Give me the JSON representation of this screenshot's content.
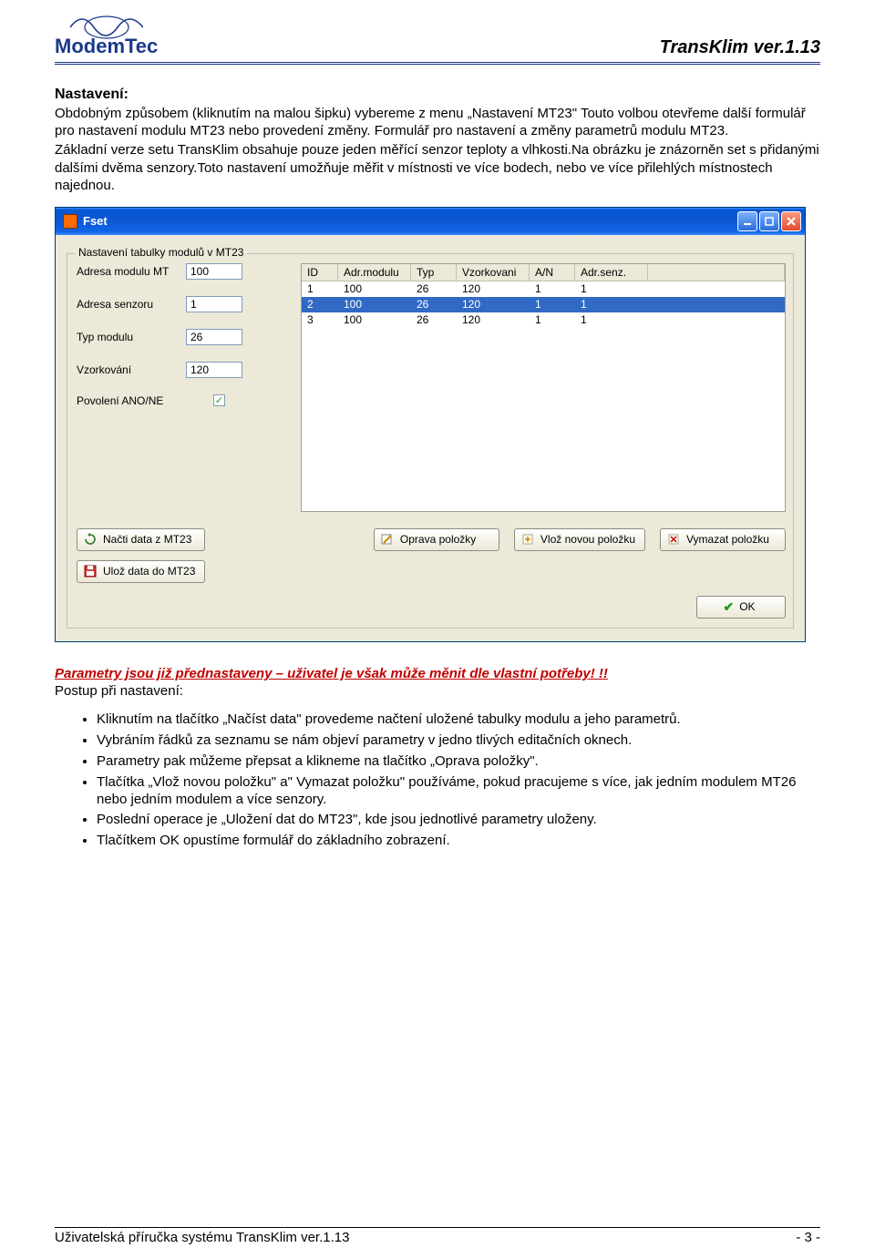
{
  "header": {
    "logo_text": "ModemTec",
    "doc_title": "TransKlim  ver.1.13",
    "logo_color": "#1a3a8a"
  },
  "text": {
    "section_title": "Nastavení:",
    "para1": "Obdobným způsobem (kliknutím na malou šipku) vybereme z menu „Nastavení MT23\" Touto volbou otevřeme další formulář pro nastavení modulu MT23 nebo provedení změny. Formulář pro nastavení a změny parametrů modulu MT23.",
    "para2": "Základní verze setu TransKlim obsahuje pouze jeden měřící senzor teploty a vlhkosti.Na obrázku je znázorněn set s přidanými dalšími dvěma senzory.Toto nastavení umožňuje měřit v místnosti ve více bodech, nebo ve více přilehlých místnostech najednou.",
    "warning": "Parametry jsou již přednastaveny – uživatel je však může měnit dle vlastní potřeby! !!",
    "after_warning": "Postup při nastavení:",
    "bullets": [
      "Kliknutím na tlačítko „Načíst data\"  provedeme načtení uložené tabulky modulu a jeho parametrů.",
      "Vybráním řádků za seznamu se nám objeví parametry v jedno tlivých editačních oknech.",
      "Parametry pak můžeme přepsat a klikneme na tlačítko „Oprava položky\".",
      "Tlačítka „Vlož novou položku\" a\" Vymazat položku\" používáme, pokud pracujeme s více, jak jedním modulem MT26 nebo jedním modulem a více senzory.",
      "Poslední operace je „Uložení dat do MT23\", kde jsou jednotlivé parametry uloženy.",
      "Tlačítkem OK opustíme formulář do základního zobrazení."
    ]
  },
  "window": {
    "title": "Fset",
    "groupbox_title": "Nastavení tabulky modulů v MT23",
    "fields": {
      "adresa_modulu_label": "Adresa modulu MT",
      "adresa_modulu_value": "100",
      "adresa_senzoru_label": "Adresa senzoru",
      "adresa_senzoru_value": "1",
      "typ_modulu_label": "Typ modulu",
      "typ_modulu_value": "26",
      "vzorkovani_label": "Vzorkování",
      "vzorkovani_value": "120",
      "povoleni_label": "Povolení ANO/NE",
      "povoleni_checked": true
    },
    "table": {
      "headers": [
        "ID",
        "Adr.modulu",
        "Typ",
        "Vzorkovani",
        "A/N",
        "Adr.senz."
      ],
      "rows": [
        {
          "id": "1",
          "adr": "100",
          "typ": "26",
          "vz": "120",
          "an": "1",
          "as": "1",
          "selected": false
        },
        {
          "id": "2",
          "adr": "100",
          "typ": "26",
          "vz": "120",
          "an": "1",
          "as": "1",
          "selected": true
        },
        {
          "id": "3",
          "adr": "100",
          "typ": "26",
          "vz": "120",
          "an": "1",
          "as": "1",
          "selected": false
        }
      ],
      "selected_bg": "#316ac5",
      "selected_fg": "#ffffff"
    },
    "buttons": {
      "nacti": "Načti data z MT23",
      "uloz": "Ulož data do MT23",
      "oprava": "Oprava položky",
      "vloz": "Vlož novou položku",
      "vymaz": "Vymazat položku",
      "ok": "OK"
    },
    "colors": {
      "titlebar_grad_top": "#3a90ff",
      "titlebar_grad_mid": "#0b56d0",
      "body_bg": "#ece9d8",
      "border": "#003c74",
      "input_border": "#7f9db9"
    }
  },
  "footer": {
    "left": "Uživatelská příručka systému TransKlim   ver.1.13",
    "right": "- 3 -"
  }
}
